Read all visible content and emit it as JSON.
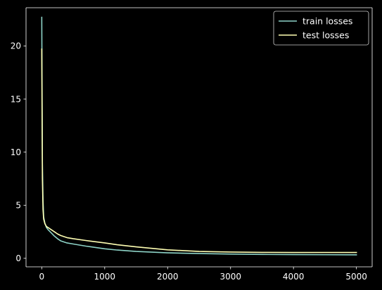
{
  "chart_data": {
    "type": "line",
    "title": "",
    "xlabel": "",
    "ylabel": "",
    "xlim": [
      -250,
      5250
    ],
    "ylim": [
      -0.8,
      23.6
    ],
    "xticks": [
      0,
      1000,
      2000,
      3000,
      4000,
      5000
    ],
    "yticks": [
      0,
      5,
      10,
      15,
      20
    ],
    "xtick_labels": [
      "0",
      "1000",
      "2000",
      "3000",
      "4000",
      "5000"
    ],
    "ytick_labels": [
      "0",
      "5",
      "10",
      "15",
      "20"
    ],
    "grid": false,
    "legend_position": "top-right",
    "background": "#000000",
    "series": [
      {
        "name": "train losses",
        "color": "#8dd3c7",
        "x": [
          0,
          10,
          20,
          30,
          50,
          75,
          100,
          150,
          200,
          250,
          300,
          400,
          500,
          700,
          1000,
          1200,
          1500,
          2000,
          2500,
          3000,
          3500,
          4000,
          4500,
          5000
        ],
        "y": [
          22.7,
          9.0,
          5.5,
          3.9,
          3.3,
          2.9,
          2.7,
          2.4,
          2.1,
          1.85,
          1.65,
          1.45,
          1.35,
          1.15,
          0.9,
          0.78,
          0.65,
          0.52,
          0.45,
          0.4,
          0.37,
          0.35,
          0.34,
          0.33
        ]
      },
      {
        "name": "test losses",
        "color": "#ffffb3",
        "x": [
          0,
          10,
          20,
          30,
          50,
          75,
          100,
          150,
          200,
          250,
          300,
          400,
          500,
          700,
          1000,
          1200,
          1500,
          2000,
          2500,
          3000,
          3500,
          4000,
          4500,
          5000
        ],
        "y": [
          19.7,
          7.5,
          4.6,
          3.7,
          3.25,
          3.0,
          2.9,
          2.7,
          2.5,
          2.3,
          2.15,
          1.95,
          1.85,
          1.68,
          1.45,
          1.28,
          1.08,
          0.8,
          0.65,
          0.59,
          0.56,
          0.55,
          0.55,
          0.55
        ]
      }
    ]
  }
}
